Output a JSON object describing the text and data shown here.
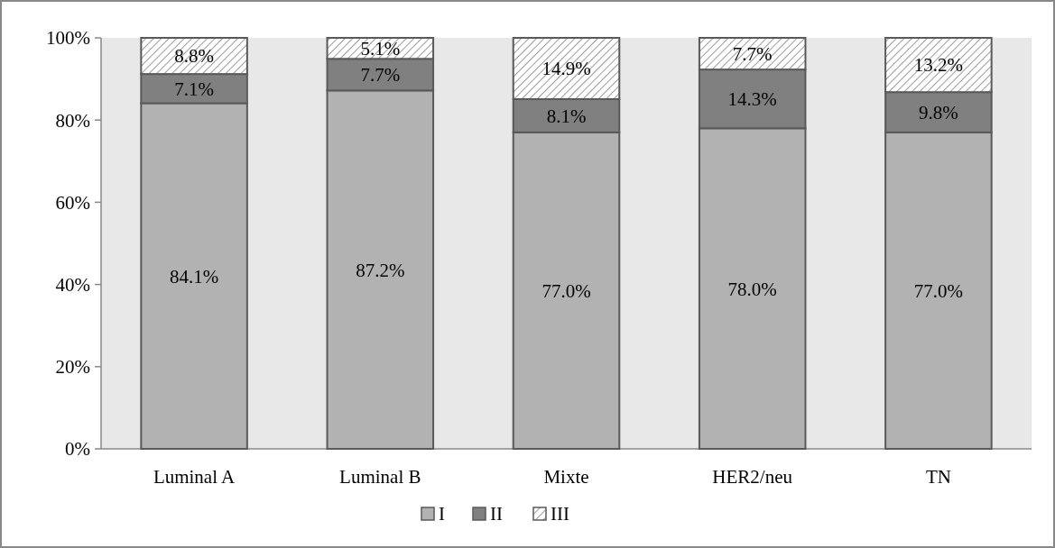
{
  "chart_data": {
    "type": "bar",
    "stacked": true,
    "categories": [
      "Luminal A",
      "Luminal B",
      "Mixte",
      "HER2/neu",
      "TN"
    ],
    "series": [
      {
        "name": "I",
        "color": "#b2b2b2",
        "values": [
          84.1,
          87.2,
          77.0,
          78.0,
          77.0
        ],
        "value_labels": [
          "84.1%",
          "87.2%",
          "77.0%",
          "78.0%",
          "77.0%"
        ]
      },
      {
        "name": "II",
        "color": "#808080",
        "values": [
          7.1,
          7.7,
          8.1,
          14.3,
          9.8
        ],
        "value_labels": [
          "7.1%",
          "7.7%",
          "8.1%",
          "14.3%",
          "9.8%"
        ]
      },
      {
        "name": "III",
        "color": "#595959",
        "values": [
          8.8,
          5.1,
          14.9,
          7.7,
          13.2
        ],
        "value_labels": [
          "8.8%",
          "5.1%",
          "14.9%",
          "7.7%",
          "13.2%"
        ]
      }
    ],
    "ylim": [
      0,
      100
    ],
    "yticks": [
      {
        "value": 0,
        "label": "0%"
      },
      {
        "value": 20,
        "label": "20%"
      },
      {
        "value": 40,
        "label": "40%"
      },
      {
        "value": 60,
        "label": "60%"
      },
      {
        "value": 80,
        "label": "80%"
      },
      {
        "value": 100,
        "label": "100%"
      }
    ],
    "legend": "bottom"
  }
}
